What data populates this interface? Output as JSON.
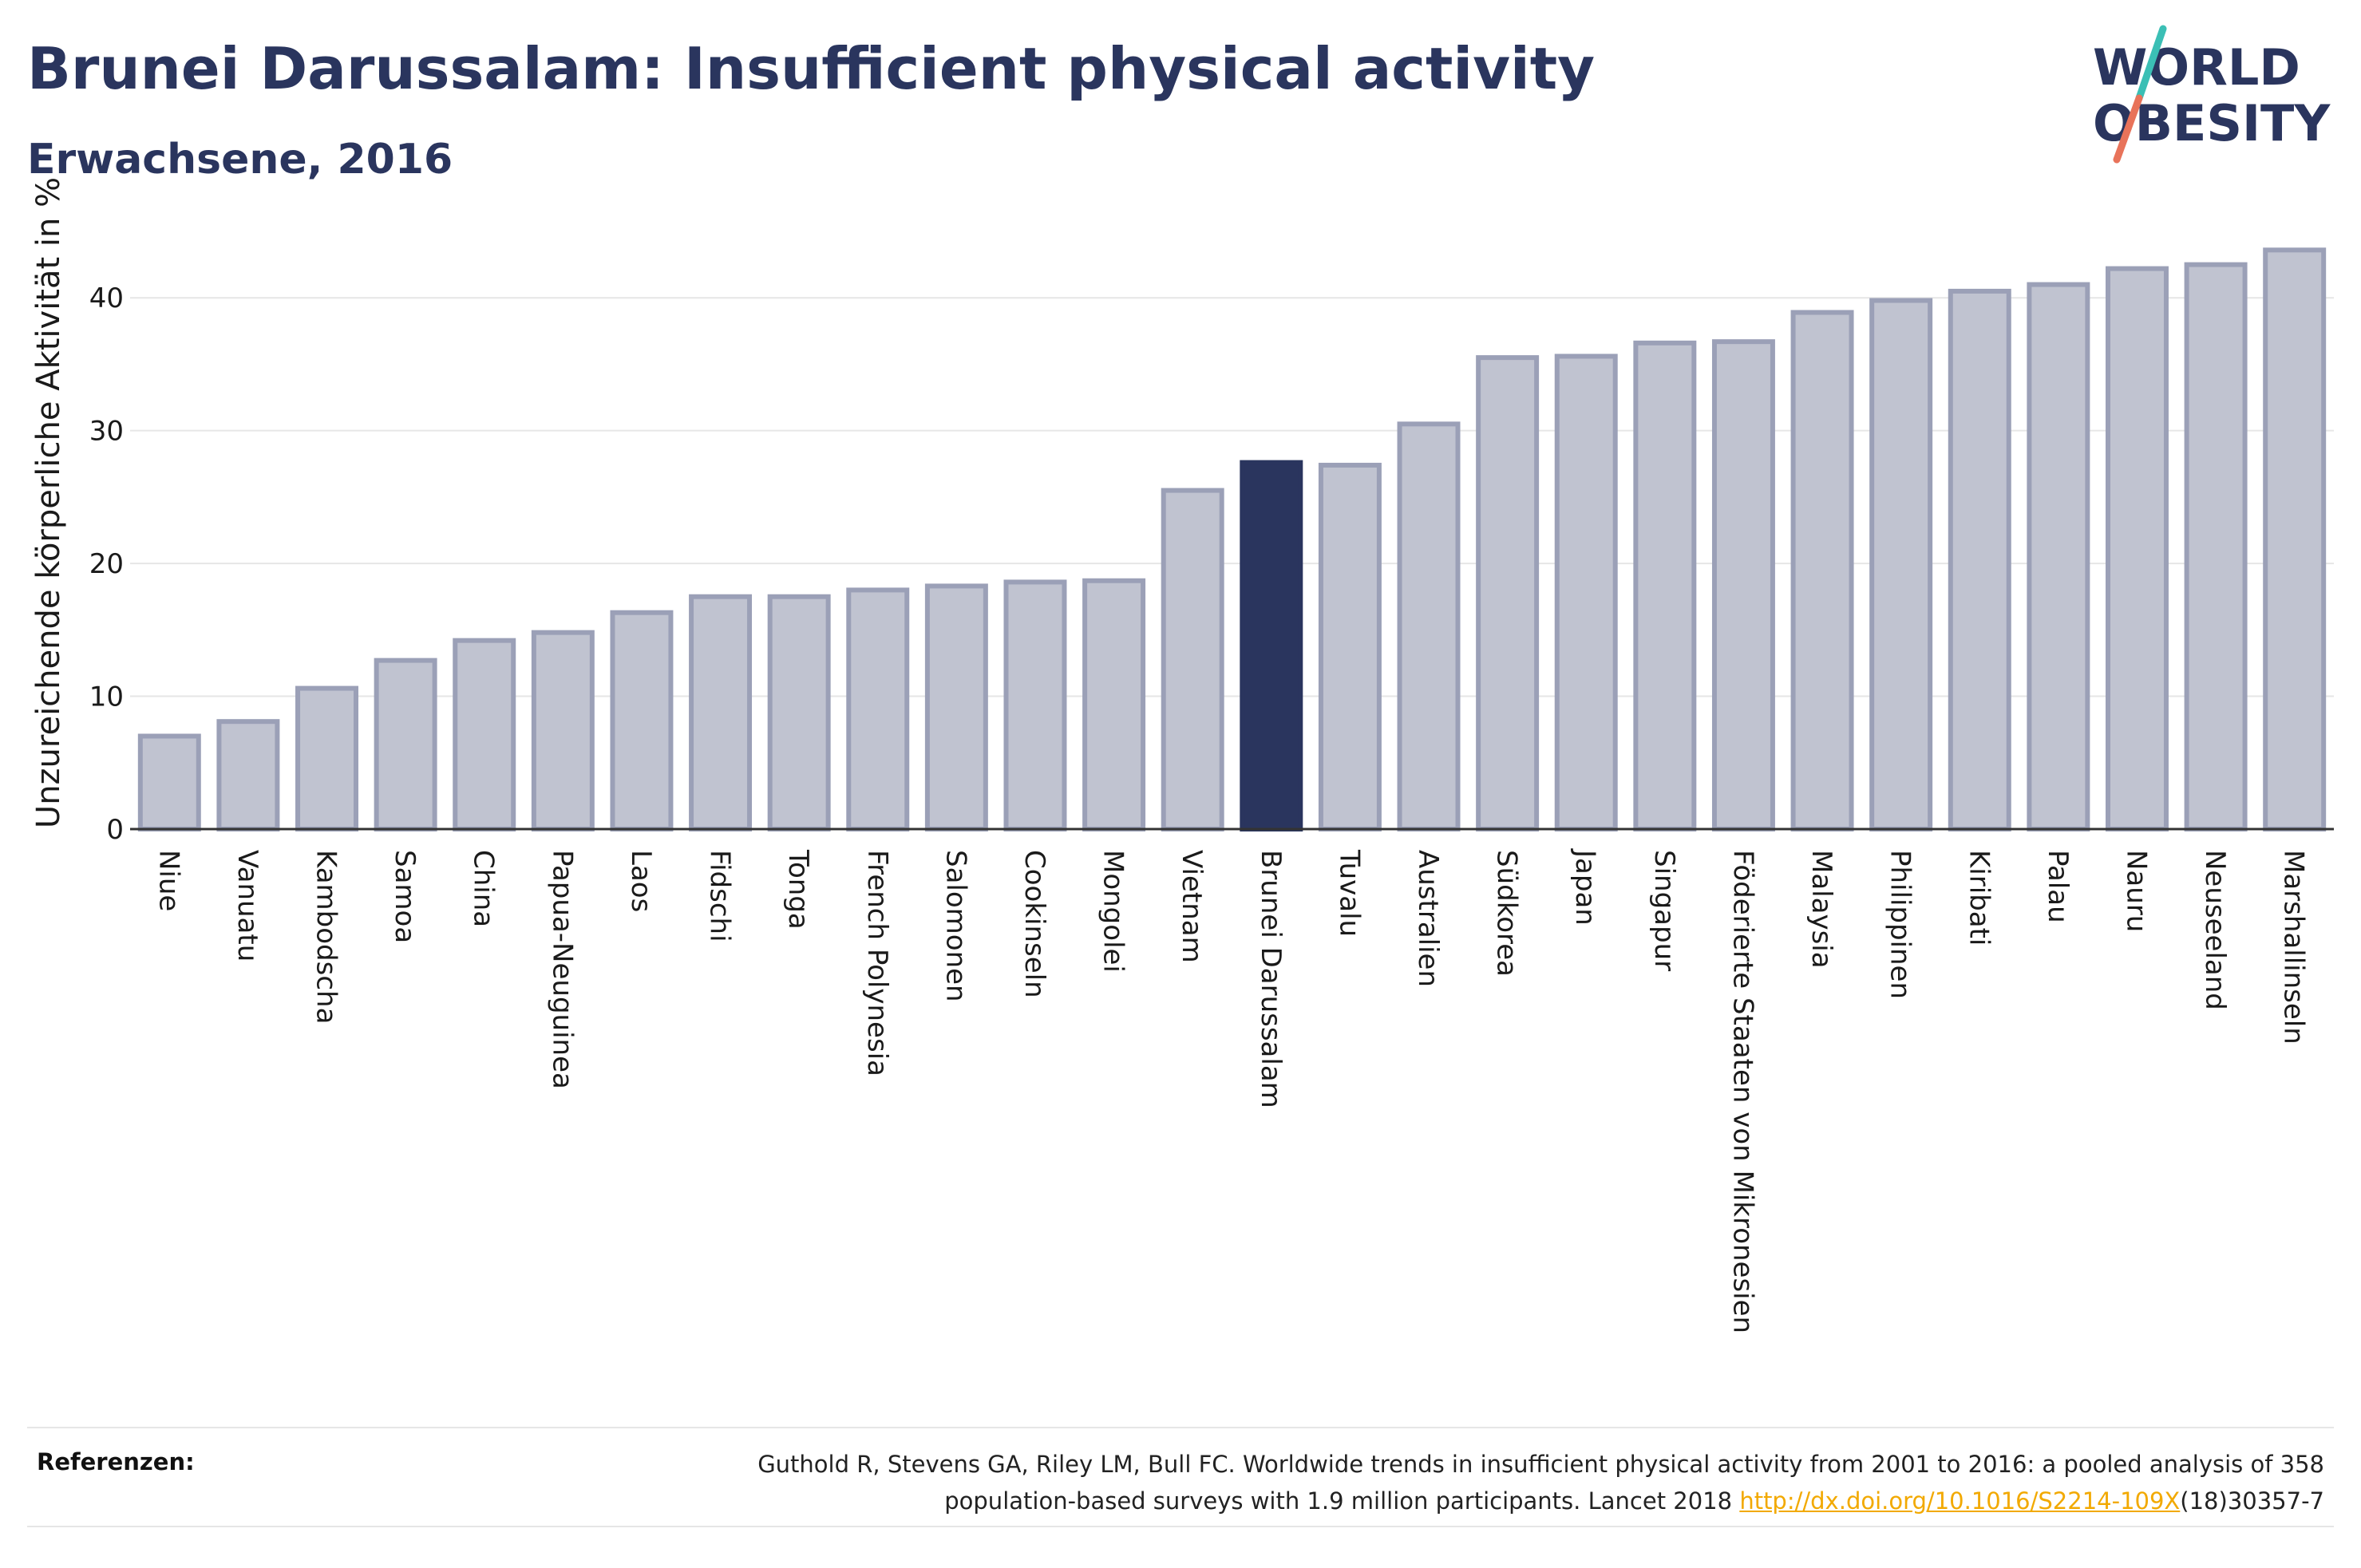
{
  "header": {
    "title": "Brunei Darussalam: Insufficient physical activity",
    "subtitle": "Erwachsene, 2016"
  },
  "logo": {
    "line1": "WORLD",
    "line2": "OBESITY",
    "colors": {
      "text": "#2a355e",
      "slash_top": "#3bbfb5",
      "slash_bottom": "#e8735a"
    }
  },
  "chart_data": {
    "type": "bar",
    "title": "Brunei Darussalam: Insufficient physical activity",
    "subtitle": "Erwachsene, 2016",
    "ylabel": "Unzureichende körperliche Aktivität in %",
    "xlabel": "",
    "ylim": [
      0,
      45
    ],
    "yticks": [
      0,
      10,
      20,
      30,
      40
    ],
    "grid": true,
    "highlight": "Brunei Darussalam",
    "colors": {
      "bar": "#c0c3d0",
      "bar_border": "#9ba0b7",
      "highlight": "#2a355e"
    },
    "categories": [
      "Niue",
      "Vanuatu",
      "Kambodscha",
      "Samoa",
      "China",
      "Papua-Neuguinea",
      "Laos",
      "Fidschi",
      "Tonga",
      "French Polynesia",
      "Salomonen",
      "Cookinseln",
      "Mongolei",
      "Vietnam",
      "Brunei Darussalam",
      "Tuvalu",
      "Australien",
      "Südkorea",
      "Japan",
      "Singapur",
      "Föderierte Staaten von Mikronesien",
      "Malaysia",
      "Philippinen",
      "Kiribati",
      "Palau",
      "Nauru",
      "Neuseeland",
      "Marshallinseln"
    ],
    "values": [
      7.0,
      8.1,
      10.6,
      12.7,
      14.2,
      14.8,
      16.3,
      17.5,
      17.5,
      18.0,
      18.3,
      18.6,
      18.7,
      25.5,
      27.6,
      27.4,
      30.5,
      35.5,
      35.6,
      36.6,
      36.7,
      38.9,
      39.8,
      40.5,
      41.0,
      42.2,
      42.5,
      43.6
    ]
  },
  "footer": {
    "ref_label": "Referenzen:",
    "ref_line1": "Guthold R, Stevens GA, Riley LM, Bull FC. Worldwide trends in insufficient physical activity from 2001 to 2016: a pooled analysis of 358",
    "ref_line2_before": "population-based surveys with 1.9 million participants. Lancet 2018 ",
    "ref_link": "http://dx.doi.org/10.1016/S2214-109X",
    "ref_line2_after": "(18)30357-7"
  }
}
